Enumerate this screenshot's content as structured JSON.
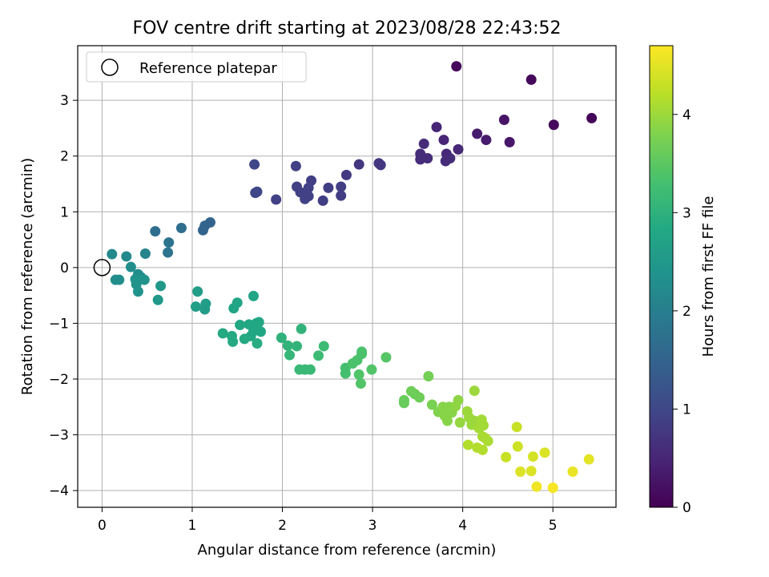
{
  "chart_data": {
    "type": "scatter",
    "title": "FOV centre drift starting at 2023/08/28 22:43:52",
    "xlabel": "Angular distance from reference (arcmin)",
    "ylabel": "Rotation from reference (arcmin)",
    "xlim": [
      -0.27,
      5.7
    ],
    "ylim": [
      -4.3,
      3.98
    ],
    "xticks": [
      0,
      1,
      2,
      3,
      4,
      5
    ],
    "yticks": [
      -4,
      -3,
      -2,
      -1,
      0,
      1,
      2,
      3
    ],
    "grid": true,
    "legend": {
      "location": "top-left",
      "entries": [
        "Reference platepar"
      ]
    },
    "colorbar": {
      "label": "Hours from first FF file",
      "colormap": "viridis",
      "range": [
        0,
        4.7
      ],
      "ticks": [
        0,
        1,
        2,
        3,
        4
      ]
    },
    "reference_point": [
      0,
      0
    ],
    "points": [
      [
        3.93,
        3.61,
        0.1
      ],
      [
        4.76,
        3.37,
        0.1
      ],
      [
        5.43,
        2.68,
        0.05
      ],
      [
        5.01,
        2.56,
        0.1
      ],
      [
        4.46,
        2.65,
        0.25
      ],
      [
        4.52,
        2.25,
        0.3
      ],
      [
        4.16,
        2.4,
        0.35
      ],
      [
        4.26,
        2.29,
        0.35
      ],
      [
        3.71,
        2.52,
        0.5
      ],
      [
        3.79,
        2.29,
        0.5
      ],
      [
        3.95,
        2.12,
        0.55
      ],
      [
        3.82,
        2.04,
        0.55
      ],
      [
        3.61,
        1.96,
        0.6
      ],
      [
        3.53,
        2.04,
        0.6
      ],
      [
        3.57,
        2.22,
        0.6
      ],
      [
        3.53,
        1.94,
        0.6
      ],
      [
        3.81,
        1.91,
        0.6
      ],
      [
        3.86,
        1.96,
        0.6
      ],
      [
        3.07,
        1.87,
        0.75
      ],
      [
        3.09,
        1.84,
        0.75
      ],
      [
        2.85,
        1.85,
        0.75
      ],
      [
        2.71,
        1.66,
        0.8
      ],
      [
        2.65,
        1.45,
        0.85
      ],
      [
        2.65,
        1.29,
        0.85
      ],
      [
        2.51,
        1.43,
        0.85
      ],
      [
        2.45,
        1.2,
        0.85
      ],
      [
        2.32,
        1.56,
        0.85
      ],
      [
        2.29,
        1.43,
        0.9
      ],
      [
        2.29,
        1.28,
        0.9
      ],
      [
        2.25,
        1.23,
        0.9
      ],
      [
        2.2,
        1.35,
        0.9
      ],
      [
        2.16,
        1.45,
        0.9
      ],
      [
        2.15,
        1.82,
        0.9
      ],
      [
        1.93,
        1.22,
        0.9
      ],
      [
        1.7,
        1.34,
        1.0
      ],
      [
        1.72,
        1.36,
        1.0
      ],
      [
        1.69,
        1.85,
        1.0
      ],
      [
        1.2,
        0.81,
        1.5
      ],
      [
        1.14,
        0.75,
        1.5
      ],
      [
        1.12,
        0.67,
        1.5
      ],
      [
        0.88,
        0.71,
        1.7
      ],
      [
        0.74,
        0.45,
        1.8
      ],
      [
        0.73,
        0.27,
        1.8
      ],
      [
        0.59,
        0.65,
        1.7
      ],
      [
        0.48,
        0.25,
        2.1
      ],
      [
        0.27,
        0.2,
        2.2
      ],
      [
        0.11,
        0.24,
        2.2
      ],
      [
        0.32,
        0.01,
        2.3
      ],
      [
        0.4,
        -0.12,
        2.3
      ],
      [
        0.43,
        -0.17,
        2.3
      ],
      [
        0.47,
        -0.22,
        2.4
      ],
      [
        0.38,
        -0.3,
        2.4
      ],
      [
        0.37,
        -0.21,
        2.4
      ],
      [
        0.4,
        -0.43,
        2.4
      ],
      [
        0.15,
        -0.22,
        2.3
      ],
      [
        0.19,
        -0.22,
        2.3
      ],
      [
        0.65,
        -0.33,
        2.5
      ],
      [
        0.62,
        -0.58,
        2.5
      ],
      [
        1.06,
        -0.43,
        2.6
      ],
      [
        1.15,
        -0.65,
        2.6
      ],
      [
        1.14,
        -0.75,
        2.6
      ],
      [
        1.04,
        -0.7,
        2.6
      ],
      [
        1.68,
        -0.51,
        2.75
      ],
      [
        1.5,
        -0.63,
        2.75
      ],
      [
        1.46,
        -0.73,
        2.75
      ],
      [
        1.53,
        -1.03,
        2.8
      ],
      [
        1.63,
        -1.02,
        2.8
      ],
      [
        1.71,
        -1.0,
        2.8
      ],
      [
        1.74,
        -0.98,
        2.8
      ],
      [
        1.68,
        -1.14,
        2.8
      ],
      [
        1.76,
        -1.15,
        2.8
      ],
      [
        1.65,
        -1.23,
        2.8
      ],
      [
        1.58,
        -1.28,
        2.85
      ],
      [
        1.72,
        -1.36,
        2.9
      ],
      [
        1.44,
        -1.23,
        2.85
      ],
      [
        1.34,
        -1.18,
        2.85
      ],
      [
        1.45,
        -1.33,
        2.85
      ],
      [
        1.99,
        -1.26,
        3.0
      ],
      [
        2.06,
        -1.4,
        3.05
      ],
      [
        2.16,
        -1.41,
        3.05
      ],
      [
        2.21,
        -1.1,
        3.05
      ],
      [
        2.08,
        -1.57,
        3.1
      ],
      [
        2.19,
        -1.83,
        3.15
      ],
      [
        2.25,
        -1.83,
        3.15
      ],
      [
        2.31,
        -1.83,
        3.15
      ],
      [
        2.4,
        -1.58,
        3.2
      ],
      [
        2.46,
        -1.41,
        3.2
      ],
      [
        2.7,
        -1.8,
        3.3
      ],
      [
        2.7,
        -1.9,
        3.3
      ],
      [
        2.78,
        -1.72,
        3.35
      ],
      [
        2.83,
        -1.66,
        3.35
      ],
      [
        2.88,
        -1.55,
        3.35
      ],
      [
        2.88,
        -1.51,
        3.35
      ],
      [
        2.85,
        -1.92,
        3.4
      ],
      [
        2.87,
        -2.08,
        3.4
      ],
      [
        2.99,
        -1.83,
        3.4
      ],
      [
        3.15,
        -1.61,
        3.45
      ],
      [
        3.35,
        -2.38,
        3.6
      ],
      [
        3.35,
        -2.43,
        3.6
      ],
      [
        3.43,
        -2.22,
        3.65
      ],
      [
        3.47,
        -2.27,
        3.65
      ],
      [
        3.52,
        -2.33,
        3.65
      ],
      [
        3.62,
        -1.95,
        3.7
      ],
      [
        3.66,
        -2.46,
        3.75
      ],
      [
        3.73,
        -2.59,
        3.8
      ],
      [
        3.78,
        -2.5,
        3.85
      ],
      [
        3.8,
        -2.66,
        3.85
      ],
      [
        3.85,
        -2.5,
        3.85
      ],
      [
        3.88,
        -2.6,
        3.85
      ],
      [
        3.83,
        -2.75,
        3.85
      ],
      [
        3.92,
        -2.49,
        3.9
      ],
      [
        3.95,
        -2.38,
        3.9
      ],
      [
        3.97,
        -2.78,
        3.95
      ],
      [
        4.05,
        -2.58,
        4.0
      ],
      [
        4.07,
        -2.69,
        4.0
      ],
      [
        4.1,
        -2.82,
        4.0
      ],
      [
        4.13,
        -2.75,
        4.0
      ],
      [
        4.18,
        -2.88,
        4.05
      ],
      [
        4.21,
        -2.73,
        4.05
      ],
      [
        4.23,
        -2.83,
        4.05
      ],
      [
        4.22,
        -3.03,
        4.1
      ],
      [
        4.25,
        -3.06,
        4.1
      ],
      [
        4.28,
        -3.11,
        4.1
      ],
      [
        4.13,
        -2.21,
        4.0
      ],
      [
        4.06,
        -3.18,
        4.15
      ],
      [
        4.16,
        -3.23,
        4.15
      ],
      [
        4.22,
        -3.27,
        4.15
      ],
      [
        4.48,
        -3.4,
        4.3
      ],
      [
        4.6,
        -2.86,
        4.3
      ],
      [
        4.61,
        -3.21,
        4.35
      ],
      [
        4.64,
        -3.66,
        4.45
      ],
      [
        4.76,
        -3.65,
        4.45
      ],
      [
        4.78,
        -3.39,
        4.4
      ],
      [
        4.91,
        -3.32,
        4.45
      ],
      [
        4.82,
        -3.93,
        4.6
      ],
      [
        5.0,
        -3.95,
        4.65
      ],
      [
        5.22,
        -3.66,
        4.55
      ],
      [
        5.4,
        -3.44,
        4.5
      ]
    ]
  }
}
